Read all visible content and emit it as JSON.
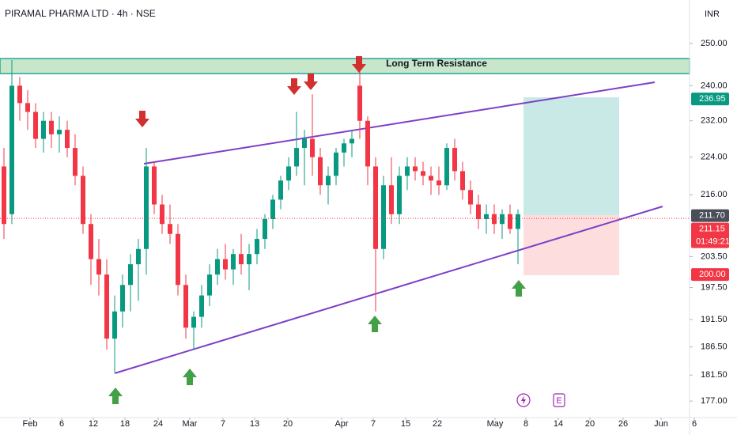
{
  "chart_data": {
    "type": "candlestick",
    "title": "PIRAMAL PHARMA LTD · 4h · NSE",
    "currency": "INR",
    "zone_label": "Long Term Resistance",
    "event_label": "E",
    "countdown": "01:49:21",
    "log": true,
    "grid": false,
    "up_color": "#089981",
    "down_color": "#f23645",
    "ylim": [
      174.2,
      260.7
    ],
    "yticks": [
      {
        "value": 250,
        "label": "250.00"
      },
      {
        "value": 240,
        "label": "240.00"
      },
      {
        "value": 232,
        "label": "232.00"
      },
      {
        "value": 224,
        "label": "224.00"
      },
      {
        "value": 216,
        "label": "216.00"
      },
      {
        "value": 203.5,
        "label": "203.50"
      },
      {
        "value": 197.5,
        "label": "197.50"
      },
      {
        "value": 191.5,
        "label": "191.50"
      },
      {
        "value": 186.5,
        "label": "186.50"
      },
      {
        "value": 181.5,
        "label": "181.50"
      },
      {
        "value": 177,
        "label": "177.00"
      }
    ],
    "xlim": [
      -0.5,
      86.7
    ],
    "xticks": [
      {
        "value": 3.3,
        "label": "Feb"
      },
      {
        "value": 7.3,
        "label": "6"
      },
      {
        "value": 11.3,
        "label": "12"
      },
      {
        "value": 15.3,
        "label": "18"
      },
      {
        "value": 19.5,
        "label": "24"
      },
      {
        "value": 23.5,
        "label": "Mar"
      },
      {
        "value": 27.7,
        "label": "7"
      },
      {
        "value": 31.7,
        "label": "13"
      },
      {
        "value": 35.9,
        "label": "20"
      },
      {
        "value": 42.7,
        "label": "Apr"
      },
      {
        "value": 46.7,
        "label": "7"
      },
      {
        "value": 50.8,
        "label": "15"
      },
      {
        "value": 54.8,
        "label": "22"
      },
      {
        "value": 62.1,
        "label": "May"
      },
      {
        "value": 66,
        "label": "8"
      },
      {
        "value": 70.1,
        "label": "14"
      },
      {
        "value": 74.1,
        "label": "20"
      },
      {
        "value": 78.3,
        "label": "26"
      },
      {
        "value": 83.1,
        "label": "Jun"
      },
      {
        "value": 87.3,
        "label": "6"
      }
    ],
    "ohlc": [
      [
        222,
        226,
        207,
        210
      ],
      [
        212,
        246,
        210,
        240
      ],
      [
        240,
        242,
        232,
        236
      ],
      [
        236,
        239,
        230,
        234
      ],
      [
        234,
        236,
        226,
        228
      ],
      [
        228,
        234,
        225,
        232
      ],
      [
        232,
        234,
        226,
        229
      ],
      [
        229,
        233,
        225,
        230
      ],
      [
        230,
        232,
        224,
        226
      ],
      [
        226,
        229,
        218,
        220
      ],
      [
        220,
        222,
        208,
        210
      ],
      [
        210,
        212,
        198,
        203
      ],
      [
        203,
        207,
        196,
        200
      ],
      [
        200,
        203,
        186,
        188
      ],
      [
        188,
        196,
        182,
        193
      ],
      [
        193,
        200,
        190,
        198
      ],
      [
        198,
        204,
        193,
        202
      ],
      [
        202,
        207,
        195,
        205
      ],
      [
        205,
        226,
        200,
        222
      ],
      [
        222,
        223,
        212,
        214
      ],
      [
        214,
        216,
        208,
        210
      ],
      [
        210,
        214,
        206,
        208
      ],
      [
        208,
        210,
        196,
        198
      ],
      [
        198,
        200,
        188,
        190
      ],
      [
        190,
        193,
        186,
        192
      ],
      [
        192,
        198,
        190,
        196
      ],
      [
        196,
        202,
        194,
        200
      ],
      [
        200,
        205,
        198,
        203
      ],
      [
        203,
        206,
        199,
        201
      ],
      [
        201,
        205,
        198,
        204
      ],
      [
        204,
        208,
        200,
        202
      ],
      [
        202,
        206,
        197,
        204
      ],
      [
        204,
        209,
        202,
        207
      ],
      [
        207,
        212,
        205,
        211
      ],
      [
        211,
        216,
        209,
        215
      ],
      [
        215,
        220,
        213,
        219
      ],
      [
        219,
        224,
        217,
        222
      ],
      [
        222,
        234,
        220,
        226
      ],
      [
        226,
        230,
        218,
        228
      ],
      [
        228,
        238,
        220,
        224
      ],
      [
        224,
        226,
        216,
        218
      ],
      [
        218,
        222,
        214,
        220
      ],
      [
        220,
        226,
        218,
        225
      ],
      [
        225,
        228,
        222,
        227
      ],
      [
        227,
        230,
        224,
        228
      ],
      [
        240,
        244,
        228,
        232
      ],
      [
        232,
        233,
        218,
        222
      ],
      [
        222,
        224,
        193,
        205
      ],
      [
        205,
        220,
        203,
        218
      ],
      [
        218,
        224,
        210,
        212
      ],
      [
        212,
        222,
        210,
        220
      ],
      [
        220,
        224,
        217,
        222
      ],
      [
        222,
        224,
        219,
        221
      ],
      [
        221,
        223,
        218,
        220
      ],
      [
        220,
        222,
        216,
        219
      ],
      [
        219,
        222,
        216,
        218
      ],
      [
        218,
        227,
        217,
        226
      ],
      [
        226,
        228,
        219,
        221
      ],
      [
        221,
        223,
        215,
        217
      ],
      [
        217,
        219,
        212,
        214
      ],
      [
        214,
        216,
        209,
        211
      ],
      [
        211,
        214,
        208,
        212
      ],
      [
        212,
        214,
        208,
        210
      ],
      [
        210,
        213,
        207,
        212
      ],
      [
        212,
        214,
        208,
        209
      ],
      [
        209,
        213,
        202,
        212
      ]
    ],
    "price_tags": [
      {
        "value": 236.95,
        "color": "#089981"
      },
      {
        "value": 211.7,
        "label": "211.70",
        "color": "#4a4e59"
      },
      {
        "value": 211.15,
        "color": "#f23645"
      },
      {
        "value": 200,
        "label": "200.00",
        "color": "#f23645"
      }
    ]
  }
}
